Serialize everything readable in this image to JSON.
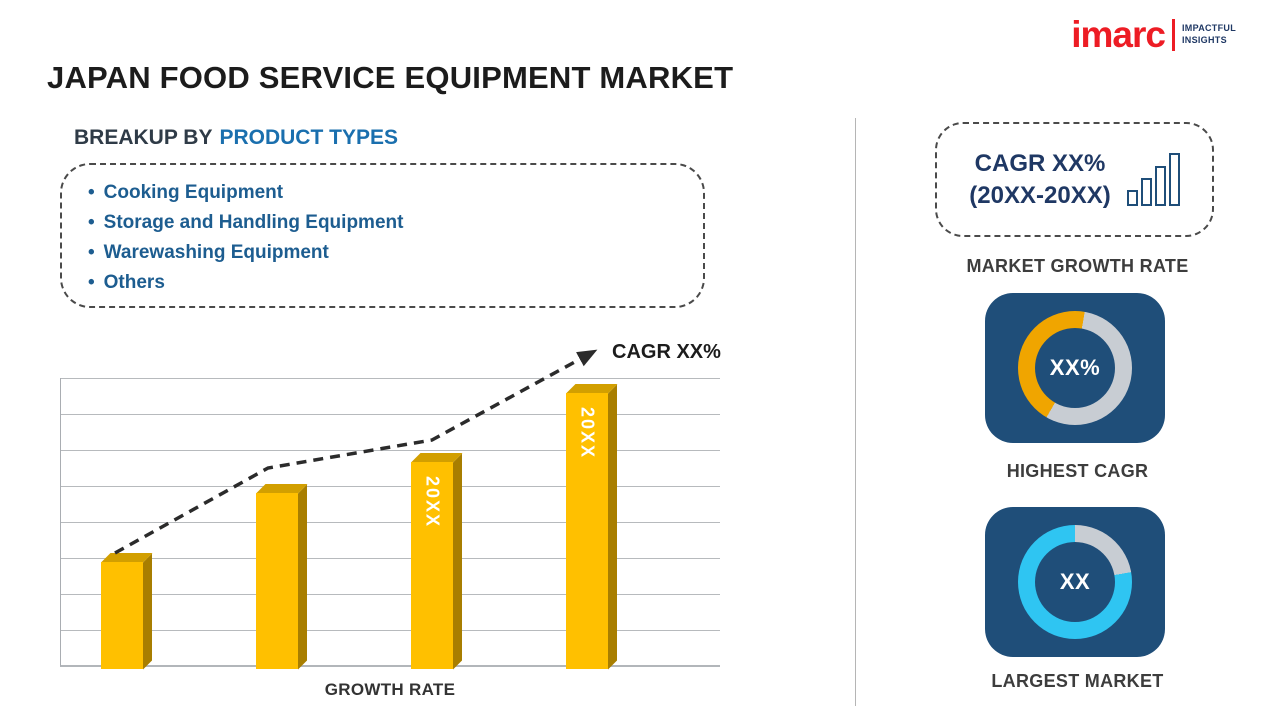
{
  "colors": {
    "navy": "#1F4E79",
    "gold": "#FFC000",
    "gold_ring": "#F0A500",
    "cyan": "#2FC5F2",
    "track_gray": "#C8CDD3",
    "logo_red": "#ED1C24",
    "highlight_blue": "#1A6FAE",
    "list_blue": "#1D5D90"
  },
  "logo": {
    "brand": "imarc",
    "tagline1": "IMPACTFUL",
    "tagline2": "INSIGHTS"
  },
  "title": "JAPAN FOOD SERVICE EQUIPMENT MARKET",
  "breakup": {
    "heading_prefix": "BREAKUP BY",
    "heading_highlight": "PRODUCT TYPES",
    "bullet": "•",
    "items": [
      "Cooking Equipment",
      "Storage and Handling Equipment",
      "Warewashing Equipment",
      "Others"
    ]
  },
  "chart_data": {
    "type": "bar",
    "categories": [
      "",
      "",
      "20XX",
      "20XX"
    ],
    "values": [
      37,
      61,
      72,
      96
    ],
    "value_max": 100,
    "title": "",
    "xlabel": "GROWTH RATE",
    "ylabel": "",
    "ylim": [
      0,
      100
    ],
    "grid": true,
    "bar_color": "#FFC000",
    "trend": "dashed-arrow-increasing",
    "trend_annotation": "CAGR XX%"
  },
  "sidebar": {
    "cagr_box": {
      "line1": "CAGR XX%",
      "line2": "(20XX-20XX)"
    },
    "growth_label": "MARKET GROWTH RATE",
    "highest_cagr": {
      "value": "XX%",
      "label": "HIGHEST CAGR",
      "donut": {
        "fraction": 0.444,
        "start_deg": 210,
        "color": "#F0A500",
        "track": "#C8CDD3"
      }
    },
    "largest_market": {
      "value": "XX",
      "label": "LARGEST MARKET",
      "donut": {
        "fraction": 0.778,
        "start_deg": 80,
        "color": "#2FC5F2",
        "track": "#C8CDD3"
      }
    }
  }
}
